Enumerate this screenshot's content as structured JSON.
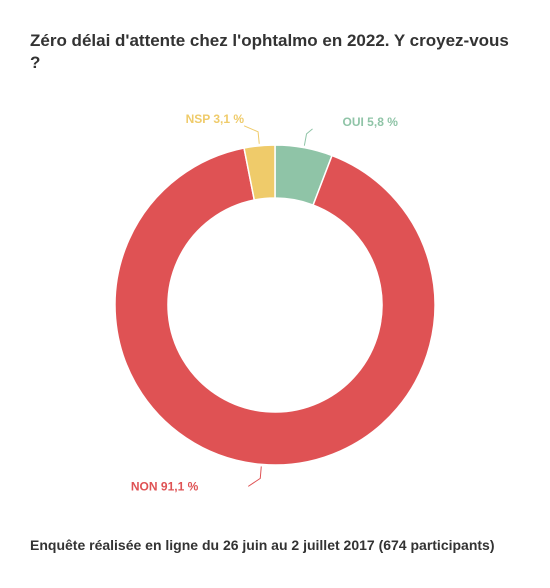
{
  "chart_data": {
    "type": "pie",
    "donut": true,
    "title": "Zéro délai d'attente chez l'ophtalmo en 2022. Y croyez-vous ?",
    "footer": "Enquête réalisée en ligne du 26 juin au 2 juillet 2017 (674 participants)",
    "slices": [
      {
        "name": "OUI",
        "value": 5.8,
        "label": "OUI 5,8 %",
        "color": "#8fc4a7"
      },
      {
        "name": "NON",
        "value": 91.1,
        "label": "NON 91,1 %",
        "color": "#df5254"
      },
      {
        "name": "NSP",
        "value": 3.1,
        "label": "NSP 3,1 %",
        "color": "#efcb6a"
      }
    ],
    "legend": "none"
  }
}
